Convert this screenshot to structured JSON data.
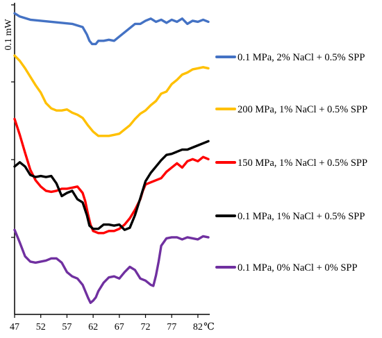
{
  "chart_data": {
    "type": "line",
    "title": "",
    "xlabel": "",
    "x_unit": "℃",
    "y_scale_label": "0.1 mW",
    "xlim": [
      47,
      84
    ],
    "x_ticks": [
      47,
      52,
      57,
      62,
      67,
      72,
      77,
      82
    ],
    "legend_position": "right",
    "grid": false,
    "series": [
      {
        "name": "0.1 MPa, 2% NaCl + 0.5% SPP",
        "color": "#4472C4",
        "offset": 1.9,
        "x": [
          47,
          48,
          50,
          52,
          54,
          56,
          58,
          60,
          60.8,
          61.3,
          61.8,
          62.5,
          63,
          64,
          65,
          66,
          67,
          68,
          70,
          71,
          72,
          73,
          74,
          75,
          76,
          77,
          78,
          79,
          80,
          81,
          82,
          83,
          84
        ],
        "y": [
          0,
          -0.03,
          -0.06,
          -0.07,
          -0.08,
          -0.09,
          -0.1,
          -0.13,
          -0.2,
          -0.26,
          -0.29,
          -0.29,
          -0.26,
          -0.26,
          -0.25,
          -0.26,
          -0.22,
          -0.18,
          -0.1,
          -0.1,
          -0.07,
          -0.05,
          -0.08,
          -0.06,
          -0.09,
          -0.06,
          -0.08,
          -0.05,
          -0.1,
          -0.07,
          -0.08,
          -0.06,
          -0.08
        ]
      },
      {
        "name": "200 MPa, 1% NaCl + 0.5% SPP",
        "color": "#FFC000",
        "offset": 1.5,
        "x": [
          47,
          48,
          49,
          50,
          51,
          52,
          53,
          54,
          55,
          56,
          57,
          58,
          59,
          60,
          61,
          62,
          63,
          64,
          65,
          66,
          67,
          68,
          69,
          70,
          71,
          72,
          73,
          74,
          75,
          76,
          77,
          78,
          79,
          80,
          81,
          82,
          83,
          84
        ],
        "y": [
          0,
          -0.05,
          -0.12,
          -0.2,
          -0.28,
          -0.35,
          -0.45,
          -0.5,
          -0.52,
          -0.52,
          -0.51,
          -0.54,
          -0.56,
          -0.59,
          -0.66,
          -0.72,
          -0.76,
          -0.76,
          -0.76,
          -0.75,
          -0.74,
          -0.7,
          -0.66,
          -0.6,
          -0.55,
          -0.52,
          -0.47,
          -0.43,
          -0.36,
          -0.34,
          -0.27,
          -0.23,
          -0.18,
          -0.16,
          -0.13,
          -0.12,
          -0.11,
          -0.12
        ]
      },
      {
        "name": "150 MPa, 1% NaCl + 0.5% SPP",
        "color": "#FF0000",
        "offset": 0.9,
        "x": [
          47,
          48,
          49,
          50,
          51,
          52,
          53,
          54,
          55,
          56,
          57,
          58,
          59,
          60,
          60.5,
          61,
          61.5,
          62,
          63,
          64,
          65,
          66,
          67,
          68,
          69,
          70,
          71,
          71.5,
          72,
          73,
          74,
          75,
          76,
          77,
          78,
          79,
          80,
          81,
          82,
          83,
          84
        ],
        "y": [
          0,
          -0.15,
          -0.32,
          -0.48,
          -0.58,
          -0.64,
          -0.68,
          -0.69,
          -0.68,
          -0.66,
          -0.66,
          -0.65,
          -0.64,
          -0.7,
          -0.78,
          -0.9,
          -1.0,
          -1.06,
          -1.08,
          -1.08,
          -1.06,
          -1.06,
          -1.04,
          -1.0,
          -0.94,
          -0.86,
          -0.76,
          -0.68,
          -0.62,
          -0.6,
          -0.58,
          -0.56,
          -0.5,
          -0.46,
          -0.42,
          -0.46,
          -0.4,
          -0.38,
          -0.4,
          -0.36,
          -0.38
        ]
      },
      {
        "name": "0.1 MPa, 1% NaCl + 0.5% SPP",
        "color": "#000000",
        "offset": 0.45,
        "x": [
          47,
          48,
          49,
          50,
          51,
          52,
          53,
          54,
          55,
          56,
          57,
          58,
          59,
          60,
          60.8,
          61.3,
          62,
          63,
          64,
          65,
          66,
          67,
          68,
          69,
          70,
          71,
          72,
          73,
          74,
          75,
          76,
          77,
          78,
          79,
          80,
          81,
          82,
          83,
          84
        ],
        "y": [
          0,
          0.04,
          0.0,
          -0.08,
          -0.1,
          -0.09,
          -0.1,
          -0.09,
          -0.16,
          -0.28,
          -0.25,
          -0.23,
          -0.31,
          -0.34,
          -0.46,
          -0.56,
          -0.59,
          -0.59,
          -0.55,
          -0.55,
          -0.56,
          -0.55,
          -0.6,
          -0.58,
          -0.46,
          -0.3,
          -0.14,
          -0.06,
          -0.0,
          0.06,
          0.11,
          0.12,
          0.14,
          0.16,
          0.16,
          0.18,
          0.2,
          0.22,
          0.24
        ]
      },
      {
        "name": "0.1 MPa, 0% NaCl + 0% SPP",
        "color": "#7030A0",
        "offset": -0.15,
        "x": [
          47,
          48,
          49,
          50,
          51,
          52,
          53,
          54,
          55,
          56,
          57,
          58,
          59,
          60,
          60.5,
          61,
          61.5,
          62,
          62.5,
          63,
          64,
          65,
          66,
          67,
          68,
          69,
          70,
          71,
          72,
          73,
          73.5,
          74,
          74.5,
          75,
          76,
          77,
          78,
          79,
          80,
          81,
          82,
          83,
          84
        ],
        "y": [
          0,
          -0.12,
          -0.25,
          -0.3,
          -0.31,
          -0.3,
          -0.29,
          -0.27,
          -0.27,
          -0.31,
          -0.4,
          -0.44,
          -0.46,
          -0.52,
          -0.58,
          -0.64,
          -0.69,
          -0.67,
          -0.64,
          -0.58,
          -0.5,
          -0.45,
          -0.44,
          -0.46,
          -0.4,
          -0.35,
          -0.38,
          -0.46,
          -0.48,
          -0.52,
          -0.53,
          -0.43,
          -0.3,
          -0.15,
          -0.08,
          -0.07,
          -0.07,
          -0.09,
          -0.07,
          -0.08,
          -0.09,
          -0.06,
          -0.07
        ]
      }
    ]
  }
}
